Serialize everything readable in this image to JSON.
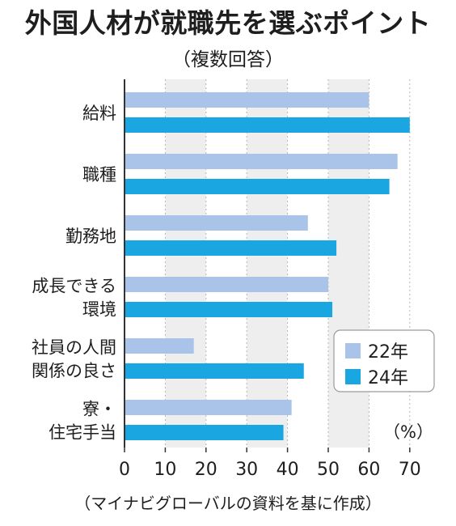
{
  "header": {
    "title": "外国人材が就職先を選ぶポイント",
    "subtitle": "（複数回答）"
  },
  "footer": {
    "source": "（マイナビグローバルの資料を基に作成）"
  },
  "colors": {
    "series_22": "#aac3e8",
    "series_24": "#1aa7e1",
    "shade": "#eeeeee",
    "axis": "#333333"
  },
  "chart_data": {
    "type": "bar",
    "orientation": "horizontal",
    "categories": [
      [
        "給料"
      ],
      [
        "職種"
      ],
      [
        "勤務地"
      ],
      [
        "成長できる",
        "環境"
      ],
      [
        "社員の人間",
        "関係の良さ"
      ],
      [
        "寮・",
        "住宅手当"
      ]
    ],
    "series": [
      {
        "name": "22年",
        "values": [
          60,
          67,
          45,
          50,
          17,
          41
        ]
      },
      {
        "name": "24年",
        "values": [
          70,
          65,
          52,
          51,
          44,
          39
        ]
      }
    ],
    "xlim": [
      0,
      70
    ],
    "xticks": [
      "0",
      "10",
      "20",
      "30",
      "40",
      "50",
      "60",
      "70"
    ],
    "unit": "（%）",
    "grid": "dotted vertical",
    "legend_position": "lower-right"
  }
}
